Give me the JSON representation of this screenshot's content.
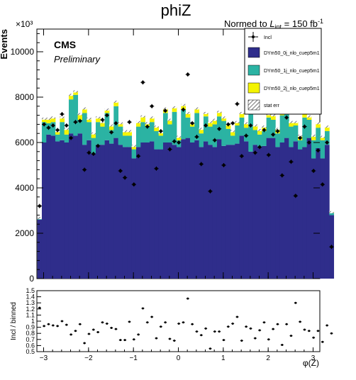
{
  "title": "phiZ",
  "lumi": {
    "prefix": "Normed to ",
    "L": "L",
    "sub": "int",
    "mid": " = 150 fb",
    "sup": "-1"
  },
  "cms": {
    "label": "CMS",
    "sub": "Preliminary"
  },
  "chart_data": [
    {
      "type": "bar",
      "subtype": "stacked-histogram-with-data-points",
      "title": "phiZ",
      "ylabel": "Events",
      "y_exponent_label": "×10³",
      "xlim": [
        -3.15,
        3.15
      ],
      "ylim": [
        0,
        11000
      ],
      "bin_lo": -3.14,
      "bin_width": 0.1,
      "x_ticks": [
        "−3",
        "−2",
        "−1",
        "0",
        "1",
        "2",
        "3"
      ],
      "x_tick_values": [
        -3,
        -2,
        -1,
        0,
        1,
        2,
        3
      ],
      "y_ticks": [
        "0",
        "2000",
        "4000",
        "6000",
        "8000",
        "10000"
      ],
      "y_tick_values": [
        0,
        2000,
        4000,
        6000,
        8000,
        10000
      ],
      "legend_position": "top-right",
      "series": [
        {
          "name": "Incl",
          "kind": "data-points",
          "values": [
            3200,
            6800,
            6650,
            6750,
            6550,
            7250,
            6750,
            6200,
            6900,
            6950,
            4800,
            5550,
            5500,
            5850,
            7000,
            7200,
            6450,
            6850,
            4750,
            4450,
            6900,
            4150,
            5400,
            8650,
            6700,
            7600,
            4850,
            6500,
            7400,
            5700,
            6050,
            6000,
            7450,
            9000,
            6850,
            6250,
            5050,
            6750,
            3850,
            6100,
            6600,
            5000,
            6800,
            6850,
            7700,
            5400,
            6300,
            6750,
            5550,
            5800,
            6550,
            5450,
            6350,
            6500,
            4550,
            7100,
            5150,
            3650,
            6200,
            6700,
            6000,
            4750,
            5650,
            4150,
            6000,
            1400
          ]
        },
        {
          "name": "DYm50_0j_nlo_cuep5m1",
          "color": "#2f2d8b",
          "values": [
            2600,
            6000,
            6350,
            6300,
            6050,
            6100,
            6000,
            6400,
            6300,
            6400,
            5900,
            6100,
            5500,
            5900,
            5900,
            6100,
            5950,
            6200,
            5900,
            5800,
            5800,
            5300,
            5800,
            6000,
            6000,
            6050,
            5700,
            5700,
            6000,
            6000,
            5900,
            5800,
            6150,
            6200,
            6000,
            6100,
            5800,
            6050,
            5900,
            5800,
            6150,
            5850,
            5900,
            5900,
            5950,
            6300,
            6050,
            5600,
            5900,
            5800,
            5850,
            6200,
            6200,
            5800,
            6000,
            6200,
            5800,
            6050,
            5700,
            5800,
            6200,
            5300,
            5750,
            5300,
            5900,
            2800
          ]
        },
        {
          "name": "DYm50_1j_nlo_cuep5m1",
          "color": "#2bb3a3",
          "values": [
            50,
            900,
            500,
            600,
            300,
            800,
            350,
            1500,
            1800,
            600,
            1400,
            800,
            700,
            1000,
            800,
            1200,
            600,
            1400,
            800,
            500,
            500,
            400,
            900,
            900,
            700,
            850,
            800,
            600,
            1300,
            800,
            1450,
            300,
            1300,
            900,
            700,
            1200,
            600,
            1100,
            800,
            1000,
            1000,
            1100,
            700,
            400,
            800,
            800,
            600,
            1900,
            650,
            550,
            650,
            900,
            800,
            600,
            1200,
            1100,
            900,
            700,
            400,
            1300,
            800,
            800,
            900,
            800,
            600,
            100
          ]
        },
        {
          "name": "DYm50_2j_nlo_cuep5m1",
          "color": "#f4f400",
          "values": [
            20,
            150,
            200,
            200,
            150,
            200,
            250,
            200,
            150,
            250,
            200,
            150,
            200,
            200,
            200,
            150,
            200,
            200,
            150,
            200,
            200,
            150,
            200,
            250,
            150,
            200,
            200,
            150,
            200,
            200,
            200,
            150,
            200,
            200,
            150,
            200,
            200,
            150,
            200,
            200,
            200,
            150,
            200,
            200,
            150,
            200,
            200,
            150,
            200,
            200,
            200,
            150,
            200,
            200,
            150,
            200,
            200,
            150,
            200,
            200,
            150,
            200,
            200,
            150,
            200,
            30
          ]
        },
        {
          "name": "stat err",
          "kind": "hatched-band"
        }
      ]
    },
    {
      "type": "scatter",
      "ylabel": "Incl / binned",
      "xlabel": "φ(Z)",
      "xlim": [
        -3.15,
        3.15
      ],
      "ylim": [
        0.5,
        1.5
      ],
      "x_ticks": [
        "−3",
        "−2",
        "−1",
        "0",
        "1",
        "2",
        "3"
      ],
      "y_ticks": [
        "0.5",
        "0.6",
        "0.7",
        "0.8",
        "0.9",
        "1",
        "1.1",
        "1.2",
        "1.3",
        "1.4",
        "1.5"
      ],
      "y_tick_values": [
        0.5,
        0.6,
        0.7,
        0.8,
        0.9,
        1.0,
        1.1,
        1.2,
        1.3,
        1.4,
        1.5
      ],
      "values": [
        1.22,
        0.92,
        0.95,
        0.93,
        0.92,
        1.0,
        0.94,
        0.78,
        0.84,
        0.95,
        0.64,
        0.79,
        0.86,
        0.82,
        0.98,
        0.96,
        0.89,
        0.87,
        0.69,
        0.69,
        0.99,
        0.7,
        0.78,
        1.21,
        0.98,
        1.07,
        0.72,
        0.91,
        0.98,
        0.71,
        0.68,
        0.96,
        0.98,
        1.37,
        0.95,
        0.83,
        0.77,
        0.88,
        0.55,
        0.83,
        0.83,
        0.69,
        0.91,
        0.96,
        1.07,
        0.68,
        0.91,
        0.88,
        0.72,
        0.85,
        0.98,
        0.7,
        0.87,
        0.95,
        0.61,
        0.95,
        0.76,
        1.3,
        0.99,
        0.86,
        0.84,
        0.73,
        0.84,
        0.66,
        0.93,
        0.8
      ]
    }
  ]
}
